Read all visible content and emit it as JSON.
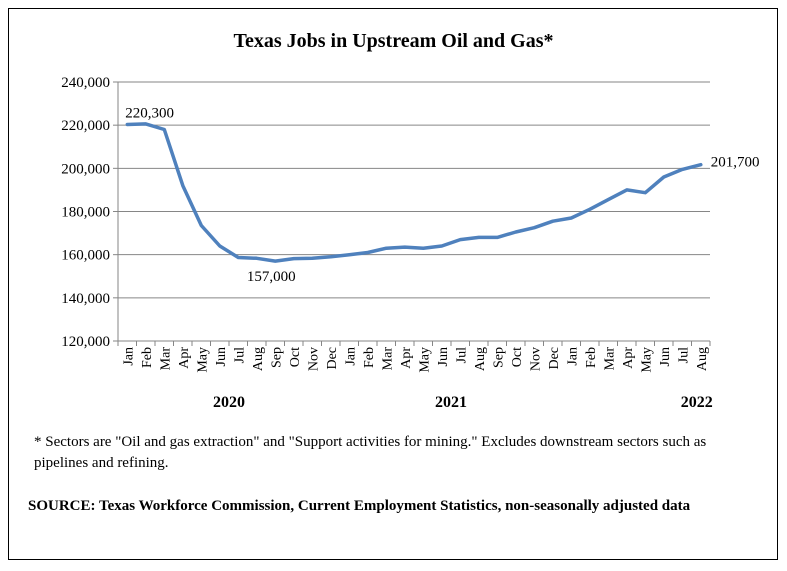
{
  "chart_data": {
    "type": "line",
    "title": "Texas Jobs in Upstream Oil and Gas*",
    "xlabel": "",
    "ylabel": "",
    "ylim": [
      120000,
      240000
    ],
    "yticks": [
      "120,000",
      "140,000",
      "160,000",
      "180,000",
      "200,000",
      "220,000",
      "240,000"
    ],
    "grid": true,
    "categories": [
      "Jan",
      "Feb",
      "Mar",
      "Apr",
      "May",
      "Jun",
      "Jul",
      "Aug",
      "Sep",
      "Oct",
      "Nov",
      "Dec",
      "Jan",
      "Feb",
      "Mar",
      "Apr",
      "May",
      "Jun",
      "Jul",
      "Aug",
      "Sep",
      "Oct",
      "Nov",
      "Dec",
      "Jan",
      "Feb",
      "Mar",
      "Apr",
      "May",
      "Jun",
      "Jul",
      "Aug"
    ],
    "years": [
      {
        "label": "2020",
        "start_index": 0,
        "end_index": 11
      },
      {
        "label": "2021",
        "start_index": 12,
        "end_index": 23
      },
      {
        "label": "2022",
        "start_index": 24,
        "end_index": 31
      }
    ],
    "series": [
      {
        "color": "#4F81BD",
        "values": [
          220300,
          220600,
          218000,
          192000,
          173500,
          164000,
          158700,
          158300,
          157000,
          158200,
          158300,
          159000,
          160000,
          161000,
          163000,
          163500,
          163000,
          164000,
          167000,
          168000,
          168000,
          170500,
          172500,
          175500,
          177000,
          181000,
          185500,
          190000,
          188700,
          196000,
          199500,
          201700
        ]
      }
    ],
    "annotations": [
      {
        "text": "220,300",
        "index": 0
      },
      {
        "text": "157,000",
        "index": 8
      },
      {
        "text": "201,700",
        "index": 31
      }
    ]
  },
  "footnote": "* Sectors are \"Oil and gas extraction\" and \"Support activities for mining.\"  Excludes downstream sectors such as pipelines and refining.",
  "source": "SOURCE: Texas Workforce Commission, Current Employment Statistics, non-seasonally adjusted data"
}
